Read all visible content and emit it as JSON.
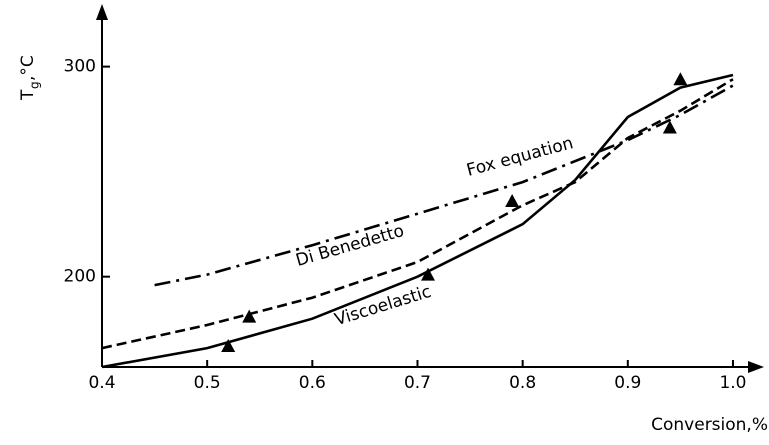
{
  "chart_data": {
    "type": "line",
    "x_label": "Conversion,%",
    "y_label_parts": [
      "T",
      "g",
      ",°C"
    ],
    "xlim": [
      0.4,
      1.02
    ],
    "ylim": [
      157,
      326
    ],
    "xticks": [
      0.4,
      0.5,
      0.6,
      0.7,
      0.8,
      0.9,
      {
        "value": 1,
        "label": "1.0"
      }
    ],
    "yticks": [
      200,
      300
    ],
    "grid": false,
    "series": [
      {
        "name": "Fox equation",
        "color": "#000000",
        "dash": "dash-dot",
        "x": [
          0.45,
          0.5,
          0.6,
          0.7,
          0.8,
          0.9,
          0.95,
          1.0
        ],
        "values": [
          196,
          201,
          215,
          230,
          245,
          265,
          277,
          291
        ]
      },
      {
        "name": "Di Benedetto",
        "color": "#000000",
        "dash": "dashed",
        "x": [
          0.4,
          0.5,
          0.6,
          0.7,
          0.8,
          0.85,
          0.9,
          0.95,
          1.0
        ],
        "values": [
          166,
          177,
          190,
          207,
          234,
          245,
          266,
          279,
          294
        ]
      },
      {
        "name": "Viscoelastic",
        "color": "#000000",
        "dash": "solid",
        "x": [
          0.4,
          0.5,
          0.6,
          0.7,
          0.8,
          0.85,
          0.9,
          0.95,
          1.0
        ],
        "values": [
          157,
          166,
          180,
          200,
          225,
          246,
          276,
          290,
          296
        ]
      }
    ],
    "markers": {
      "color": "#000000",
      "x": [
        0.52,
        0.54,
        0.71,
        0.79,
        0.94,
        0.95
      ],
      "values": [
        167,
        181,
        201,
        236,
        271,
        294
      ]
    }
  }
}
